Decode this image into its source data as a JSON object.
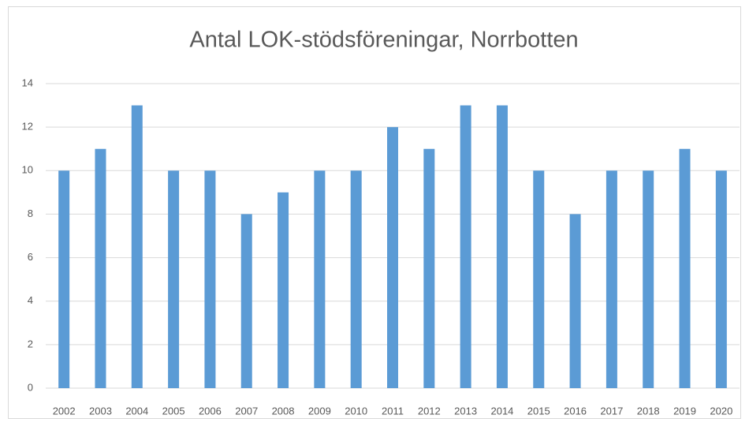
{
  "chart_data": {
    "type": "bar",
    "title": "Antal LOK-stödsföreningar, Norrbotten",
    "categories": [
      "2002",
      "2003",
      "2004",
      "2005",
      "2006",
      "2007",
      "2008",
      "2009",
      "2010",
      "2011",
      "2012",
      "2013",
      "2014",
      "2015",
      "2016",
      "2017",
      "2018",
      "2019",
      "2020"
    ],
    "values": [
      10,
      11,
      13,
      10,
      10,
      8,
      9,
      10,
      10,
      12,
      11,
      13,
      13,
      10,
      8,
      10,
      10,
      11,
      10
    ],
    "color": "#5b9bd5",
    "ylim": [
      0,
      14
    ],
    "yticks": [
      0,
      2,
      4,
      6,
      8,
      10,
      12,
      14
    ],
    "grid": true
  }
}
